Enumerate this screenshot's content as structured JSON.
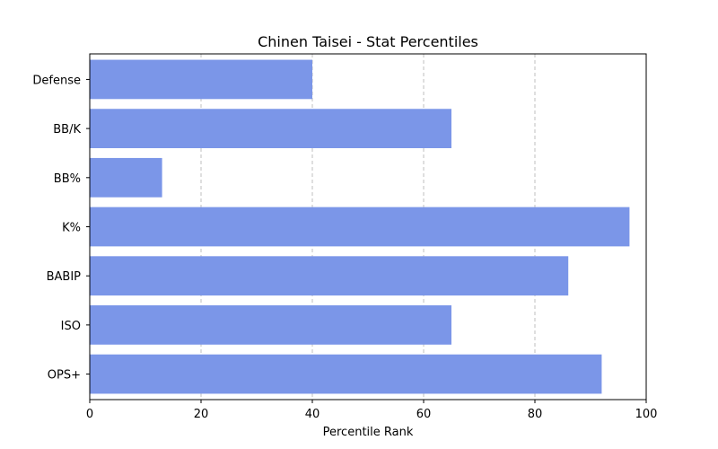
{
  "chart_data": {
    "type": "bar",
    "orientation": "horizontal",
    "title": "Chinen Taisei - Stat Percentiles",
    "xlabel": "Percentile Rank",
    "ylabel": "",
    "xlim": [
      0,
      100
    ],
    "xticks": [
      0,
      20,
      40,
      60,
      80,
      100
    ],
    "categories": [
      "OPS+",
      "ISO",
      "BABIP",
      "K%",
      "BB%",
      "BB/K",
      "Defense"
    ],
    "values": [
      92,
      65,
      86,
      97,
      13,
      65,
      40
    ],
    "grid": "x-dashed",
    "bar_color": "#7b96e8"
  }
}
